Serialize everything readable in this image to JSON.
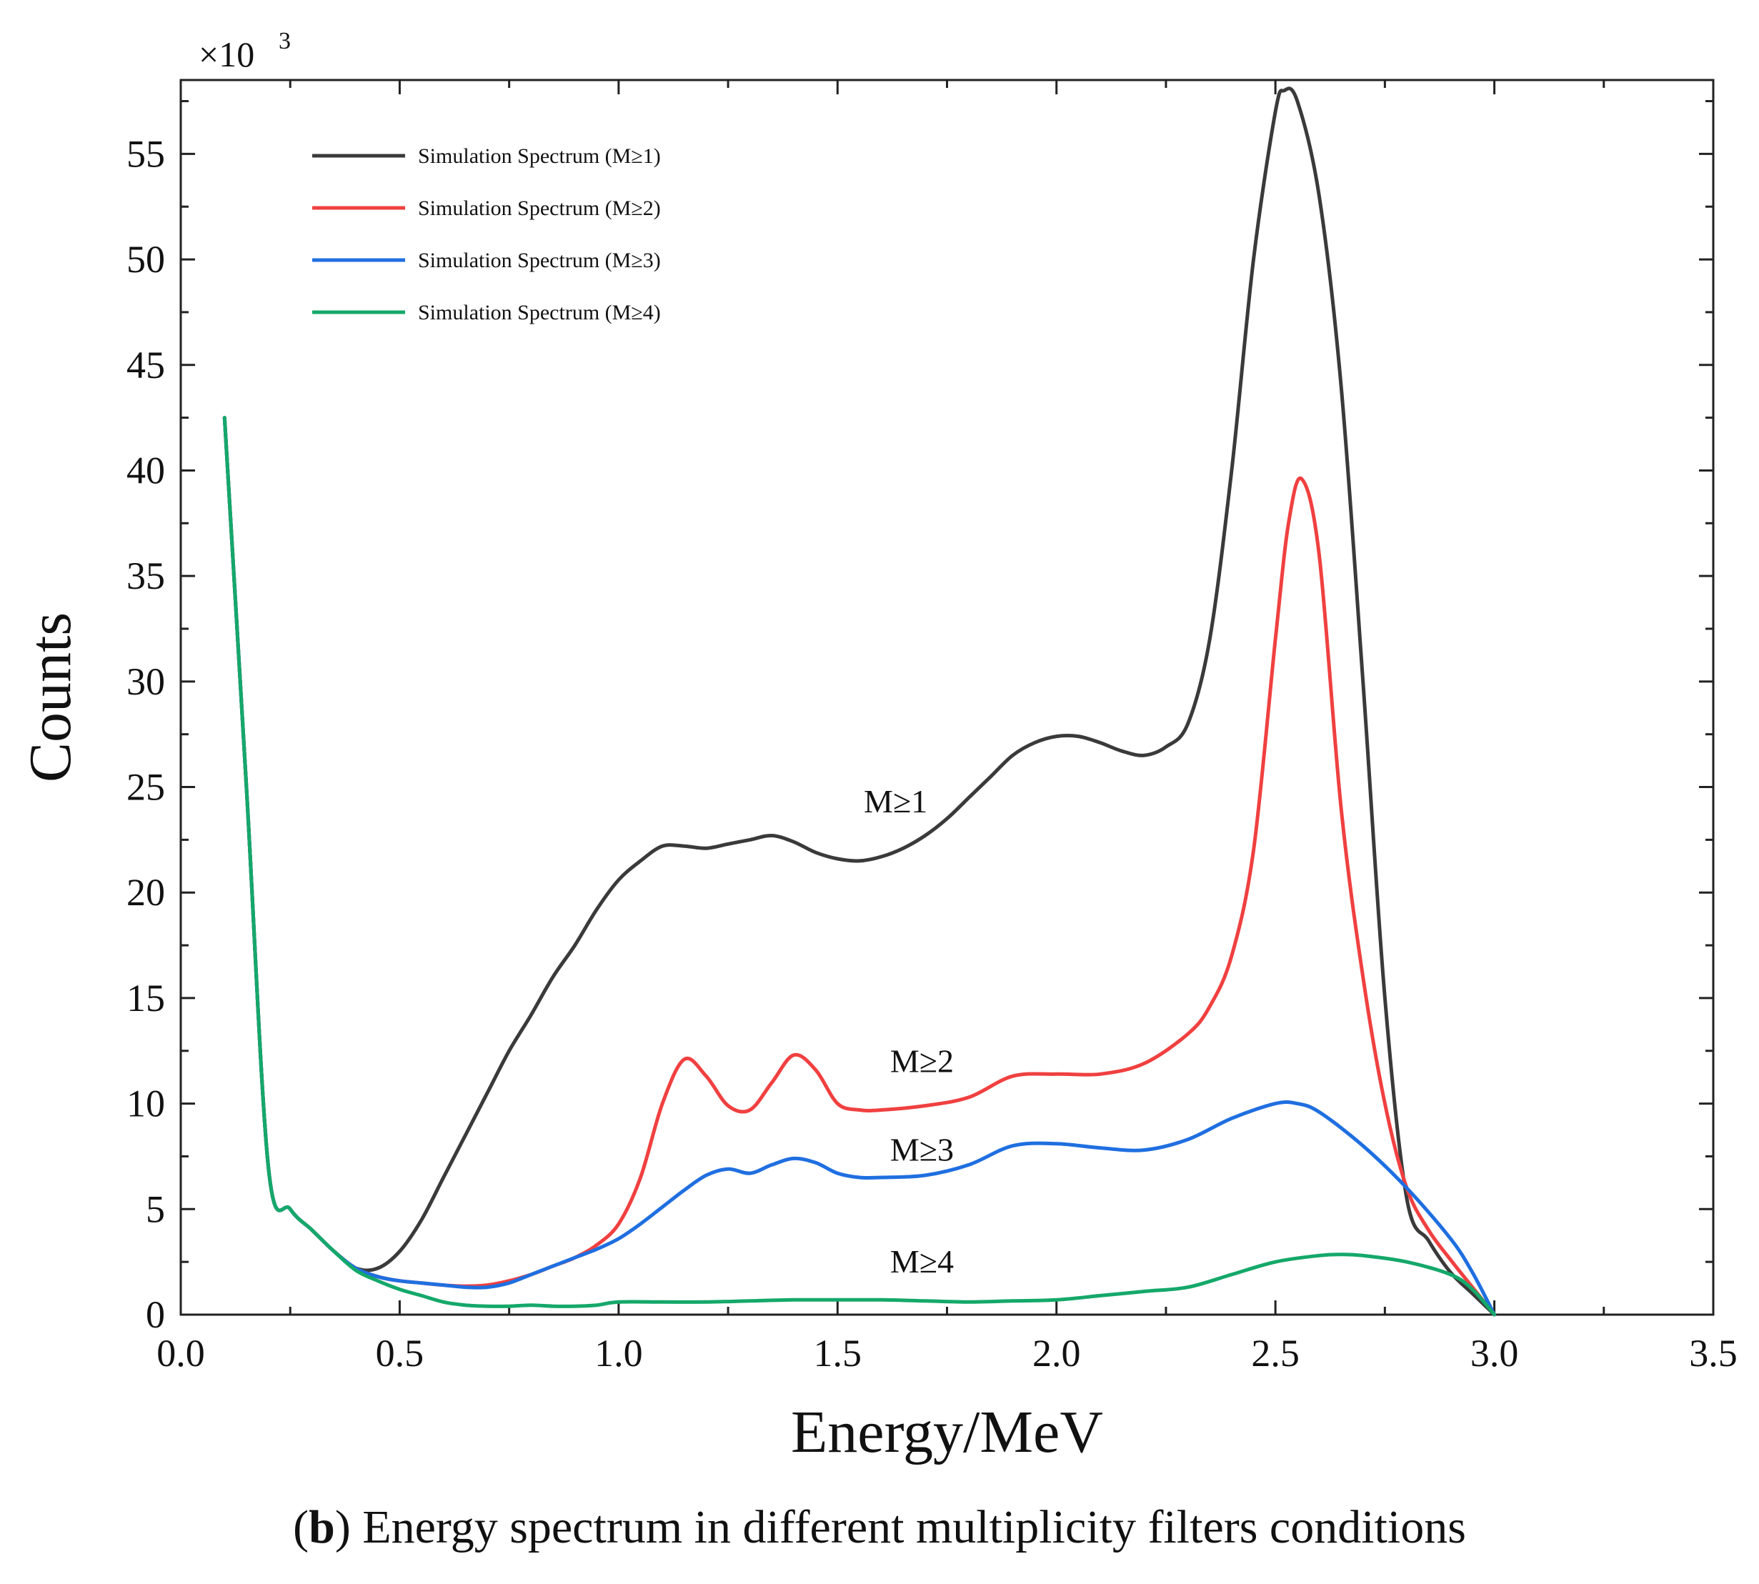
{
  "chart_data": {
    "type": "line",
    "xlabel": "Energy/MeV",
    "ylabel": "Counts",
    "y_multiplier": "×10",
    "y_multiplier_exp": "3",
    "xlim": [
      0.0,
      3.5
    ],
    "ylim": [
      0,
      58.5
    ],
    "x_ticks": [
      0.0,
      0.5,
      1.0,
      1.5,
      2.0,
      2.5,
      3.0,
      3.5
    ],
    "x_tick_labels": [
      "0.0",
      "0.5",
      "1.0",
      "1.5",
      "2.0",
      "2.5",
      "3.0",
      "3.5"
    ],
    "y_ticks": [
      0,
      5,
      10,
      15,
      20,
      25,
      30,
      35,
      40,
      45,
      50,
      55
    ],
    "y_tick_labels": [
      "0",
      "5",
      "10",
      "15",
      "20",
      "25",
      "30",
      "35",
      "40",
      "45",
      "50",
      "55"
    ],
    "legend_position": "top-left",
    "series": [
      {
        "name": "Simulation Spectrum (M≥1)",
        "color": "#3a3a3a",
        "points": [
          [
            0.1,
            42.5
          ],
          [
            0.15,
            25
          ],
          [
            0.2,
            7
          ],
          [
            0.25,
            5
          ],
          [
            0.3,
            4
          ],
          [
            0.35,
            3
          ],
          [
            0.4,
            2.2
          ],
          [
            0.45,
            2.2
          ],
          [
            0.5,
            3
          ],
          [
            0.55,
            4.5
          ],
          [
            0.6,
            6.5
          ],
          [
            0.65,
            8.5
          ],
          [
            0.7,
            10.5
          ],
          [
            0.75,
            12.5
          ],
          [
            0.8,
            14.2
          ],
          [
            0.85,
            16
          ],
          [
            0.9,
            17.5
          ],
          [
            0.95,
            19.2
          ],
          [
            1.0,
            20.6
          ],
          [
            1.05,
            21.5
          ],
          [
            1.1,
            22.2
          ],
          [
            1.15,
            22.2
          ],
          [
            1.2,
            22.1
          ],
          [
            1.25,
            22.3
          ],
          [
            1.3,
            22.5
          ],
          [
            1.35,
            22.7
          ],
          [
            1.4,
            22.4
          ],
          [
            1.45,
            21.9
          ],
          [
            1.5,
            21.6
          ],
          [
            1.55,
            21.5
          ],
          [
            1.6,
            21.7
          ],
          [
            1.65,
            22.1
          ],
          [
            1.7,
            22.7
          ],
          [
            1.75,
            23.5
          ],
          [
            1.8,
            24.5
          ],
          [
            1.85,
            25.5
          ],
          [
            1.9,
            26.5
          ],
          [
            1.95,
            27.1
          ],
          [
            2.0,
            27.4
          ],
          [
            2.05,
            27.4
          ],
          [
            2.1,
            27.1
          ],
          [
            2.15,
            26.7
          ],
          [
            2.2,
            26.5
          ],
          [
            2.25,
            26.9
          ],
          [
            2.3,
            28
          ],
          [
            2.35,
            32
          ],
          [
            2.4,
            40
          ],
          [
            2.45,
            50
          ],
          [
            2.5,
            57
          ],
          [
            2.52,
            58
          ],
          [
            2.55,
            57.5
          ],
          [
            2.6,
            53
          ],
          [
            2.65,
            44
          ],
          [
            2.7,
            30
          ],
          [
            2.75,
            15
          ],
          [
            2.8,
            5.5
          ],
          [
            2.85,
            3.5
          ],
          [
            2.9,
            2
          ],
          [
            2.95,
            1
          ],
          [
            3.0,
            0
          ]
        ]
      },
      {
        "name": "Simulation Spectrum (M≥2)",
        "color": "#f04040",
        "points": [
          [
            0.1,
            42.5
          ],
          [
            0.15,
            25
          ],
          [
            0.2,
            7
          ],
          [
            0.25,
            5
          ],
          [
            0.3,
            4
          ],
          [
            0.35,
            3
          ],
          [
            0.4,
            2.2
          ],
          [
            0.45,
            1.8
          ],
          [
            0.5,
            1.6
          ],
          [
            0.55,
            1.5
          ],
          [
            0.6,
            1.4
          ],
          [
            0.65,
            1.35
          ],
          [
            0.7,
            1.4
          ],
          [
            0.75,
            1.6
          ],
          [
            0.8,
            1.9
          ],
          [
            0.85,
            2.3
          ],
          [
            0.9,
            2.7
          ],
          [
            0.95,
            3.3
          ],
          [
            1.0,
            4.3
          ],
          [
            1.05,
            6.5
          ],
          [
            1.1,
            10
          ],
          [
            1.15,
            12.1
          ],
          [
            1.2,
            11.3
          ],
          [
            1.25,
            9.9
          ],
          [
            1.3,
            9.7
          ],
          [
            1.35,
            11
          ],
          [
            1.4,
            12.3
          ],
          [
            1.45,
            11.6
          ],
          [
            1.5,
            10
          ],
          [
            1.55,
            9.7
          ],
          [
            1.6,
            9.7
          ],
          [
            1.7,
            9.9
          ],
          [
            1.8,
            10.3
          ],
          [
            1.9,
            11.3
          ],
          [
            2.0,
            11.4
          ],
          [
            2.1,
            11.4
          ],
          [
            2.2,
            11.9
          ],
          [
            2.3,
            13.3
          ],
          [
            2.35,
            14.6
          ],
          [
            2.4,
            17
          ],
          [
            2.45,
            22
          ],
          [
            2.5,
            32
          ],
          [
            2.53,
            37.5
          ],
          [
            2.56,
            39.6
          ],
          [
            2.6,
            36
          ],
          [
            2.65,
            24
          ],
          [
            2.7,
            16
          ],
          [
            2.75,
            10
          ],
          [
            2.8,
            6
          ],
          [
            2.85,
            4
          ],
          [
            2.9,
            2.6
          ],
          [
            2.95,
            1.3
          ],
          [
            3.0,
            0
          ]
        ]
      },
      {
        "name": "Simulation Spectrum (M≥3)",
        "color": "#1f6fe0",
        "points": [
          [
            0.1,
            42.5
          ],
          [
            0.15,
            25
          ],
          [
            0.2,
            7
          ],
          [
            0.25,
            5
          ],
          [
            0.3,
            4
          ],
          [
            0.35,
            3
          ],
          [
            0.4,
            2.2
          ],
          [
            0.45,
            1.8
          ],
          [
            0.5,
            1.6
          ],
          [
            0.55,
            1.5
          ],
          [
            0.6,
            1.4
          ],
          [
            0.65,
            1.3
          ],
          [
            0.7,
            1.3
          ],
          [
            0.75,
            1.5
          ],
          [
            0.8,
            1.9
          ],
          [
            0.85,
            2.3
          ],
          [
            0.9,
            2.7
          ],
          [
            0.95,
            3.1
          ],
          [
            1.0,
            3.6
          ],
          [
            1.05,
            4.3
          ],
          [
            1.1,
            5.1
          ],
          [
            1.15,
            5.9
          ],
          [
            1.2,
            6.6
          ],
          [
            1.25,
            6.9
          ],
          [
            1.3,
            6.7
          ],
          [
            1.35,
            7.1
          ],
          [
            1.4,
            7.4
          ],
          [
            1.45,
            7.2
          ],
          [
            1.5,
            6.7
          ],
          [
            1.55,
            6.5
          ],
          [
            1.6,
            6.5
          ],
          [
            1.7,
            6.6
          ],
          [
            1.8,
            7.1
          ],
          [
            1.9,
            8
          ],
          [
            2.0,
            8.1
          ],
          [
            2.1,
            7.9
          ],
          [
            2.2,
            7.8
          ],
          [
            2.3,
            8.3
          ],
          [
            2.4,
            9.3
          ],
          [
            2.5,
            10
          ],
          [
            2.55,
            10
          ],
          [
            2.6,
            9.6
          ],
          [
            2.7,
            8
          ],
          [
            2.8,
            6
          ],
          [
            2.9,
            3.6
          ],
          [
            2.95,
            2
          ],
          [
            3.0,
            0
          ]
        ]
      },
      {
        "name": "Simulation Spectrum (M≥4)",
        "color": "#14a86a",
        "points": [
          [
            0.1,
            42.5
          ],
          [
            0.15,
            25
          ],
          [
            0.2,
            7
          ],
          [
            0.25,
            5
          ],
          [
            0.3,
            4
          ],
          [
            0.35,
            3
          ],
          [
            0.4,
            2.1
          ],
          [
            0.45,
            1.6
          ],
          [
            0.5,
            1.2
          ],
          [
            0.55,
            0.9
          ],
          [
            0.6,
            0.6
          ],
          [
            0.65,
            0.45
          ],
          [
            0.7,
            0.4
          ],
          [
            0.75,
            0.4
          ],
          [
            0.8,
            0.45
          ],
          [
            0.85,
            0.4
          ],
          [
            0.9,
            0.4
          ],
          [
            0.95,
            0.45
          ],
          [
            1.0,
            0.6
          ],
          [
            1.1,
            0.6
          ],
          [
            1.2,
            0.6
          ],
          [
            1.3,
            0.65
          ],
          [
            1.4,
            0.7
          ],
          [
            1.5,
            0.7
          ],
          [
            1.6,
            0.7
          ],
          [
            1.7,
            0.65
          ],
          [
            1.8,
            0.6
          ],
          [
            1.9,
            0.65
          ],
          [
            2.0,
            0.7
          ],
          [
            2.1,
            0.9
          ],
          [
            2.2,
            1.1
          ],
          [
            2.3,
            1.3
          ],
          [
            2.4,
            1.9
          ],
          [
            2.5,
            2.5
          ],
          [
            2.6,
            2.8
          ],
          [
            2.65,
            2.85
          ],
          [
            2.7,
            2.8
          ],
          [
            2.8,
            2.5
          ],
          [
            2.9,
            1.9
          ],
          [
            2.95,
            1.2
          ],
          [
            3.0,
            0
          ]
        ]
      }
    ],
    "annotations": [
      {
        "text": "M≥1",
        "x": 1.56,
        "y": 23.8
      },
      {
        "text": "M≥2",
        "x": 1.62,
        "y": 11.5
      },
      {
        "text": "M≥3",
        "x": 1.62,
        "y": 7.3
      },
      {
        "text": "M≥4",
        "x": 1.62,
        "y": 2.0
      }
    ]
  },
  "caption": {
    "prefix_open": "(",
    "prefix_bold": "b",
    "prefix_close": ")",
    "text": " Energy spectrum in different multiplicity filters conditions"
  }
}
